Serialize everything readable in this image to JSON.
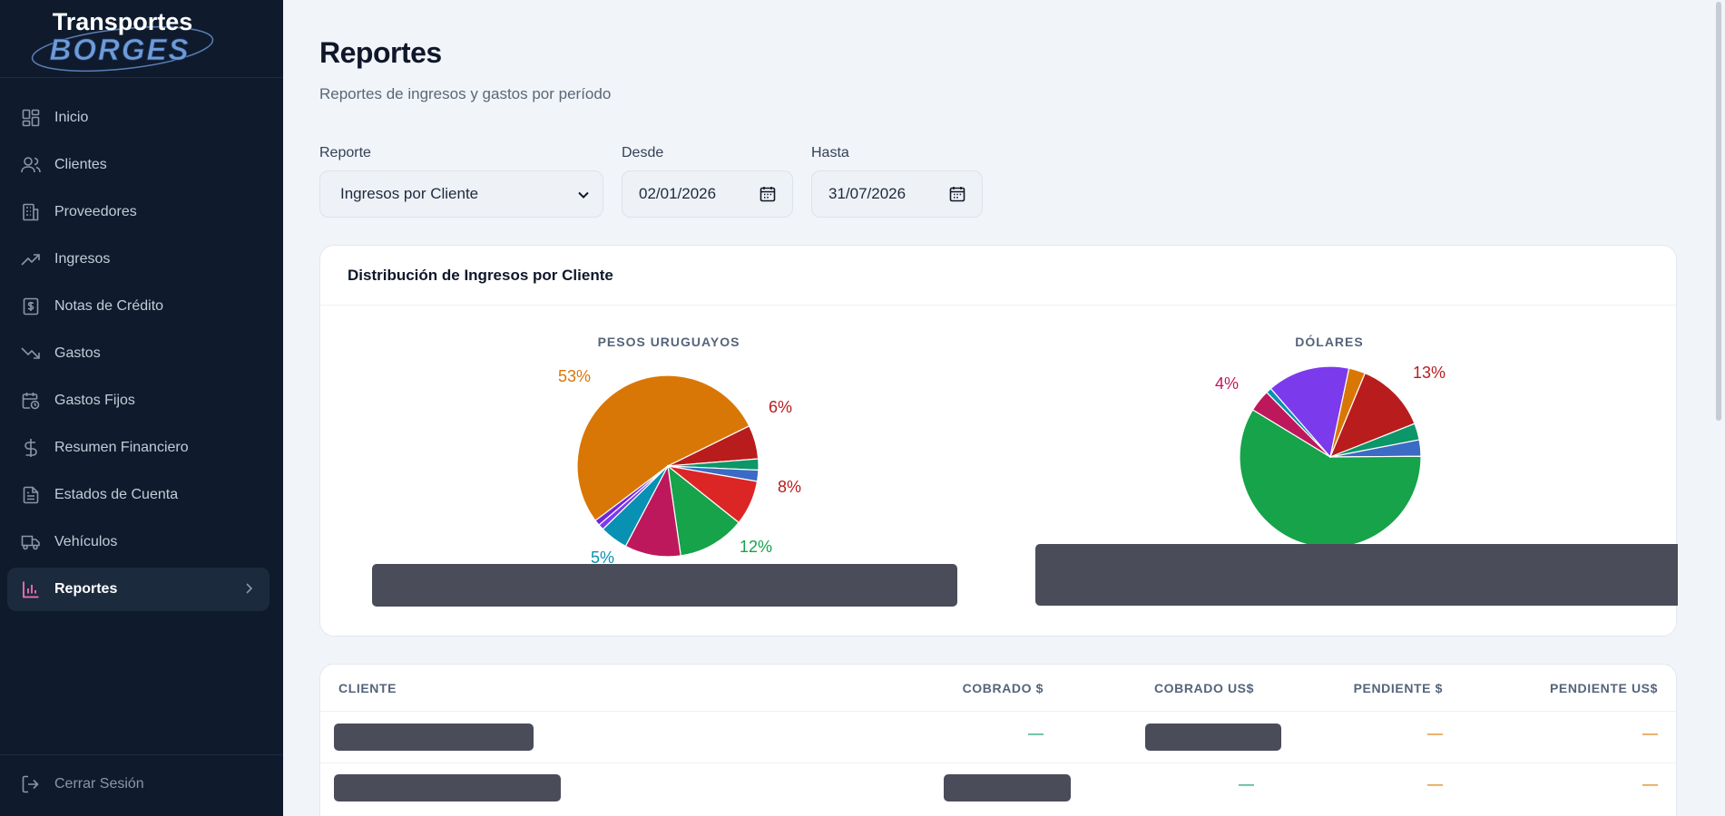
{
  "brand": {
    "line1": "Transportes",
    "line2": "BORGES"
  },
  "sidebar": {
    "items": [
      {
        "label": "Inicio",
        "icon": "grid-icon"
      },
      {
        "label": "Clientes",
        "icon": "users-icon"
      },
      {
        "label": "Proveedores",
        "icon": "building-icon"
      },
      {
        "label": "Ingresos",
        "icon": "trending-up-icon"
      },
      {
        "label": "Notas de Crédito",
        "icon": "receipt-icon"
      },
      {
        "label": "Gastos",
        "icon": "trending-down-icon"
      },
      {
        "label": "Gastos Fijos",
        "icon": "calendar-clock-icon"
      },
      {
        "label": "Resumen Financiero",
        "icon": "dollar-icon"
      },
      {
        "label": "Estados de Cuenta",
        "icon": "file-text-icon"
      },
      {
        "label": "Vehículos",
        "icon": "truck-icon"
      },
      {
        "label": "Reportes",
        "icon": "bar-chart-icon",
        "active": true
      }
    ],
    "logout_label": "Cerrar Sesión"
  },
  "header": {
    "title": "Reportes",
    "subtitle": "Reportes de ingresos y gastos por período"
  },
  "filters": {
    "report_label": "Reporte",
    "report_value": "Ingresos por Cliente",
    "from_label": "Desde",
    "from_value": "02/01/2026",
    "to_label": "Hasta",
    "to_value": "31/07/2026"
  },
  "chart_card": {
    "title": "Distribución de Ingresos por Cliente"
  },
  "colors": {
    "orange": "#d97706",
    "dark_red": "#b91c1c",
    "green": "#16a34a",
    "blue": "#3b6bc4",
    "red": "#dc2626",
    "magenta": "#be185d",
    "cyan": "#0891b2",
    "purple": "#7c3aed",
    "teal": "#0d9668",
    "redacted": "#4b4c5a"
  },
  "chart_data": [
    {
      "type": "pie",
      "title": "PESOS URUGUAYOS",
      "slices": [
        {
          "value": 53,
          "color": "#d97706",
          "label": "53%"
        },
        {
          "value": 6,
          "color": "#b91c1c",
          "label": "6%"
        },
        {
          "value": 2,
          "color": "#0d9668",
          "label": ""
        },
        {
          "value": 2,
          "color": "#3b6bc4",
          "label": ""
        },
        {
          "value": 8,
          "color": "#dc2626",
          "label": "8%"
        },
        {
          "value": 12,
          "color": "#16a34a",
          "label": "12%"
        },
        {
          "value": 10,
          "color": "#be185d",
          "label": ""
        },
        {
          "value": 5,
          "color": "#0891b2",
          "label": "5%"
        },
        {
          "value": 1,
          "color": "#7c3aed",
          "label": ""
        },
        {
          "value": 1,
          "color": "#6d28d9",
          "label": ""
        }
      ],
      "label_colors": [
        "#d97706",
        "#b91c1c",
        "",
        "",
        "#b91c1c",
        "#16a34a",
        "",
        "#0891b2",
        "",
        ""
      ]
    },
    {
      "type": "pie",
      "title": "DÓLARES",
      "slices": [
        {
          "value": 3,
          "color": "#3b6bc4",
          "label": ""
        },
        {
          "value": 60,
          "color": "#16a34a",
          "label": ""
        },
        {
          "value": 4,
          "color": "#be185d",
          "label": "4%"
        },
        {
          "value": 1,
          "color": "#0891b2",
          "label": ""
        },
        {
          "value": 15,
          "color": "#7c3aed",
          "label": ""
        },
        {
          "value": 3,
          "color": "#d97706",
          "label": ""
        },
        {
          "value": 13,
          "color": "#b91c1c",
          "label": "13%"
        },
        {
          "value": 3,
          "color": "#0d9668",
          "label": ""
        }
      ],
      "label_colors": [
        "",
        "",
        "#be185d",
        "",
        "",
        "",
        "#b91c1c",
        ""
      ]
    }
  ],
  "table": {
    "columns": [
      "CLIENTE",
      "COBRADO $",
      "COBRADO US$",
      "PENDIENTE $",
      "PENDIENTE US$"
    ],
    "rows": [
      {
        "cobrado_pesos": "—",
        "pendiente_pesos": "—",
        "pendiente_usd": "—"
      },
      {
        "cobrado_usd": "—",
        "pendiente_pesos": "—",
        "pendiente_usd": "—"
      }
    ]
  }
}
